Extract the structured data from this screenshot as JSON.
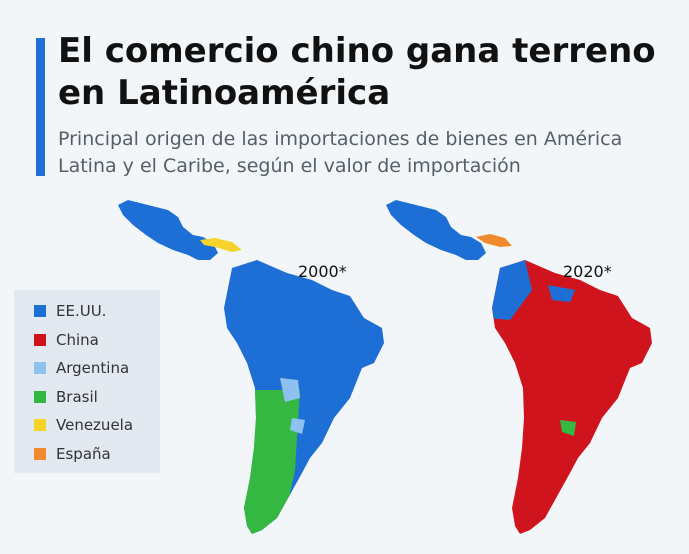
{
  "header": {
    "title": "El comercio chino gana terreno en Latinoamérica",
    "subtitle": "Principal origen de las importaciones de bienes en América Latina y el Caribe, según el valor de importación"
  },
  "maps": [
    {
      "year_label": "2000*"
    },
    {
      "year_label": "2020*"
    }
  ],
  "legend": [
    {
      "label": "EE.UU.",
      "color": "#1d6fd6"
    },
    {
      "label": "China",
      "color": "#d0141e"
    },
    {
      "label": "Argentina",
      "color": "#8fc1f0"
    },
    {
      "label": "Brasil",
      "color": "#35b841"
    },
    {
      "label": "Venezuela",
      "color": "#f5d32a"
    },
    {
      "label": "España",
      "color": "#f08a2c"
    }
  ],
  "colors": {
    "accent": "#1f6fd6",
    "background": "#f3f6f9"
  }
}
